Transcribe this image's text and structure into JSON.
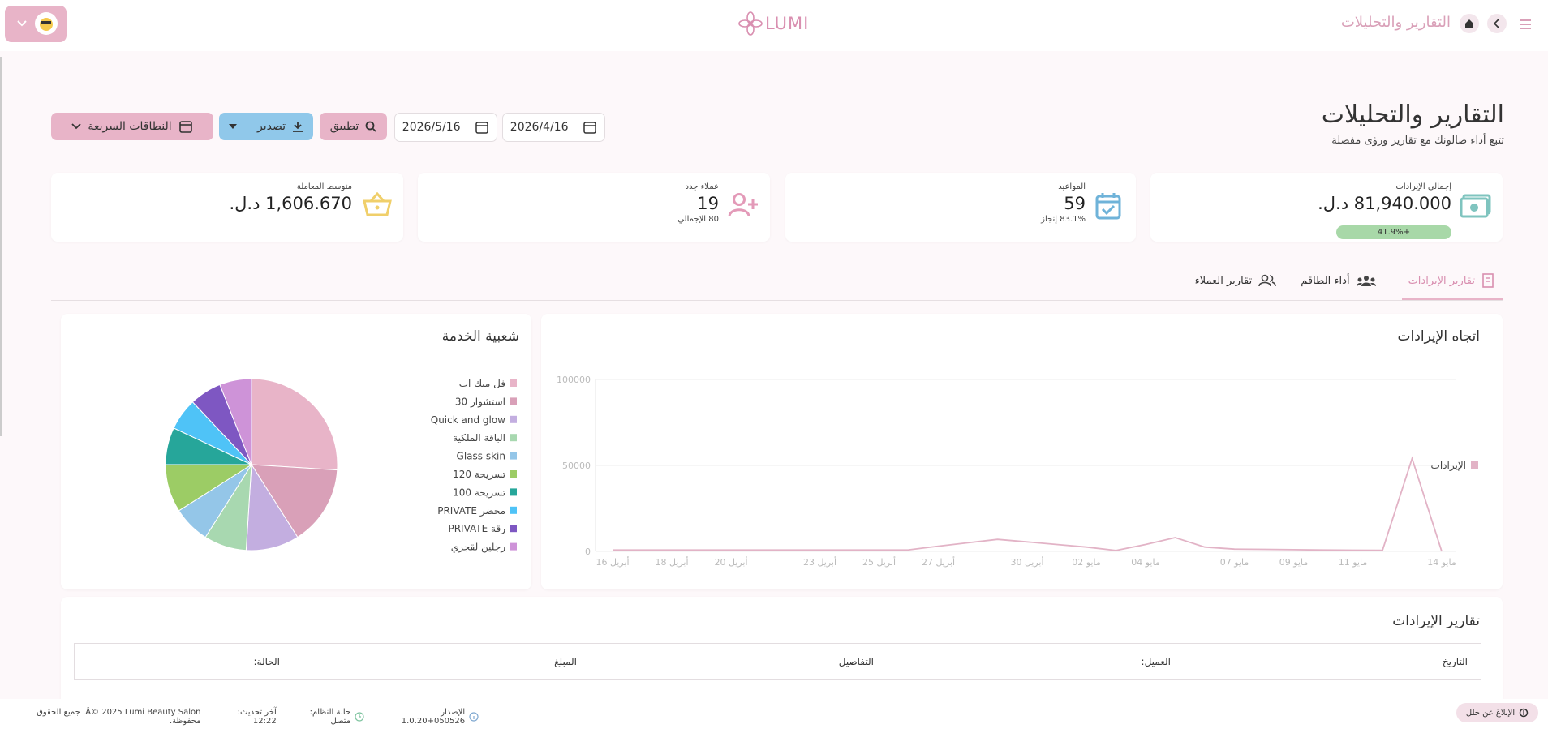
{
  "header": {
    "breadcrumb": "التقارير والتحليلات",
    "logo": "LUMI"
  },
  "page": {
    "title": "التقارير والتحليلات",
    "subtitle": "تتبع أداء صالونك مع تقارير ورؤى مفصلة"
  },
  "toolbar": {
    "date_from": "2026/4/16",
    "date_to": "2026/5/16",
    "apply": "تطبيق",
    "export": "تصدير",
    "quick_ranges": "النطاقات السريعة"
  },
  "kpis": [
    {
      "label": "إجمالي الإيرادات",
      "value": "81,940.000 د.ل.",
      "badge": "+41.9%"
    },
    {
      "label": "المواعيد",
      "value": "59",
      "note": "83.1% إنجاز"
    },
    {
      "label": "عملاء جدد",
      "value": "19",
      "note": "80 الإجمالي"
    },
    {
      "label": "متوسط المعاملة",
      "value": "1,606.670 د.ل."
    }
  ],
  "tabs": [
    "تقارير الإيرادات",
    "أداء الطاقم",
    "تقارير العملاء"
  ],
  "chart_data": [
    {
      "type": "line",
      "title": "اتجاه الإيرادات",
      "categories": [
        "أبريل 16",
        null,
        "أبريل 18",
        null,
        "أبريل 20",
        null,
        null,
        "أبريل 23",
        null,
        "أبريل 25",
        null,
        "أبريل 27",
        null,
        null,
        "أبريل 30",
        null,
        "مايو 02",
        null,
        "مايو 04",
        null,
        null,
        "مايو 07",
        null,
        "مايو 09",
        null,
        "مايو 11",
        null,
        null,
        "مايو 14"
      ],
      "series": [
        {
          "name": "الإيرادات",
          "color": "#e2b3c6",
          "values": [
            800,
            800,
            800,
            800,
            800,
            800,
            800,
            800,
            800,
            800,
            900,
            3000,
            5000,
            7000,
            5500,
            4000,
            2500,
            500,
            4000,
            8000,
            2500,
            1300,
            1200,
            1000,
            800,
            700,
            600,
            54000,
            0
          ]
        }
      ],
      "ylim": [
        0,
        100000
      ],
      "yticks": [
        0,
        50000,
        100000
      ],
      "grid": true,
      "legend": "right"
    },
    {
      "type": "pie",
      "title": "شعبية الخدمة",
      "categories": [
        "فل ميك اب",
        "استشوار 30",
        "Quick and glow",
        "الباقة الملكية",
        "Glass skin",
        "تسريحة 120",
        "تسريحة 100",
        "محضر PRIVATE",
        "رقة PRIVATE",
        "رجلين لقجري"
      ],
      "values": [
        26,
        15,
        10,
        8,
        7,
        9,
        7,
        6,
        6,
        6
      ],
      "colors": [
        "#e8b4c8",
        "#d9a0b8",
        "#c3aee0",
        "#a8d8b0",
        "#94c6e8",
        "#9ccc65",
        "#26a69a",
        "#4fc3f7",
        "#7e57c2",
        "#ce93d8"
      ],
      "legend": "left"
    }
  ],
  "table": {
    "title": "تقارير الإيرادات",
    "columns": [
      "التاريخ",
      "العميل:",
      "التفاصيل",
      "المبلغ",
      "الحالة:"
    ]
  },
  "footer": {
    "report": "الإبلاغ عن خلل",
    "version": "الإصدار 050526+1.0.20",
    "status": "حالة النظام: متصل",
    "updated": "آخر تحديث: 12:22",
    "copyright": "Â© 2025 Lumi Beauty Salon. جميع الحقوق محفوظة."
  }
}
